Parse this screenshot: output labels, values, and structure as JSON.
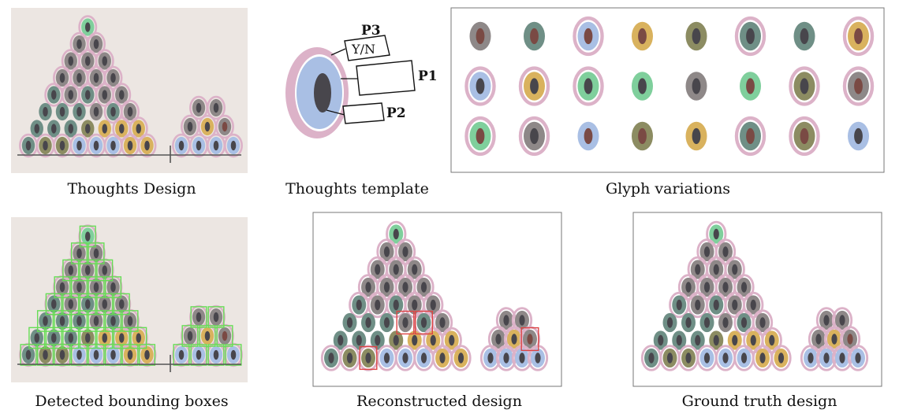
{
  "captions": {
    "thoughts_design": "Thoughts Design",
    "thoughts_template": "Thoughts template",
    "glyph_variations": "Glyph variations",
    "detected_boxes": "Detected bounding boxes",
    "reconstructed": "Reconstructed design",
    "ground_truth": "Ground truth design"
  },
  "template": {
    "p1": "P1",
    "p2": "P2",
    "p3": "P3",
    "yn": "Y/N"
  },
  "colors": {
    "paper": "#ece6e2",
    "blue": "#a9bfe4",
    "pink": "#dcb2c8",
    "green": "#7fcf9c",
    "gray": "#8e8888",
    "teal": "#6f8f86",
    "gold": "#d9b25e",
    "olive": "#8c8c62",
    "pupil_dark": "#48464c",
    "pupil_brown": "#7a4a44",
    "detect_box": "#66dd55",
    "recon_box": "#dd4444"
  },
  "glyph_grid": [
    [
      "gray:brown:0",
      "teal:brown:0",
      "blue:brown:1",
      "gold:brown:0",
      "olive:dark:0",
      "teal:dark:1",
      "teal:dark:0",
      "gold:brown:1"
    ],
    [
      "blue:dark:1",
      "gold:dark:1",
      "green:dark:1",
      "green:dark:0",
      "gray:dark:0",
      "green:brown:0",
      "olive:dark:1",
      "gray:brown:1"
    ],
    [
      "green:brown:1",
      "gray:dark:1",
      "blue:brown:0",
      "olive:brown:0",
      "gold:dark:0",
      "teal:brown:1",
      "olive:brown:1",
      "blue:dark:0"
    ]
  ]
}
